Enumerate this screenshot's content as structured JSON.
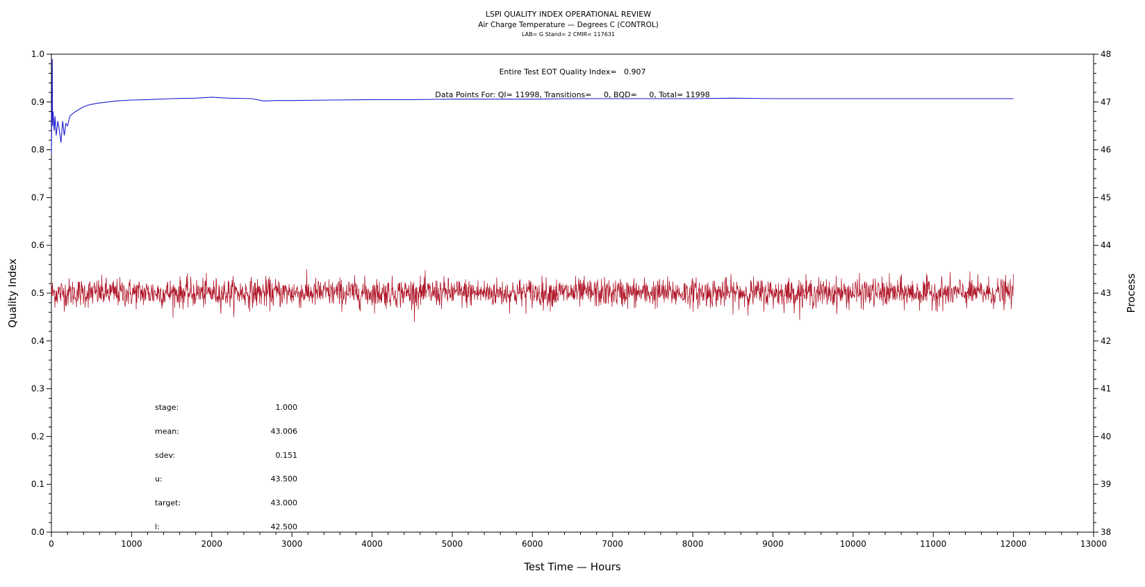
{
  "chart_data": {
    "type": "line",
    "title": "LSPI QUALITY INDEX OPERATIONAL REVIEW",
    "subtitle": "Air Charge Temperature — Degrees C (CONTROL)",
    "subtitle2": "LAB= G Stand= 2 CMIR= 117631",
    "xlabel": "Test Time — Hours",
    "ylabel": "Quality Index",
    "y2label": "Process",
    "xlim": [
      0,
      13000
    ],
    "ylim": [
      0.0,
      1.0
    ],
    "y2lim": [
      38,
      48
    ],
    "xticks": [
      "0",
      "1000",
      "2000",
      "3000",
      "4000",
      "5000",
      "6000",
      "7000",
      "8000",
      "9000",
      "10000",
      "11000",
      "12000",
      "13000"
    ],
    "yticks": [
      "0.0",
      "0.1",
      "0.2",
      "0.3",
      "0.4",
      "0.5",
      "0.6",
      "0.7",
      "0.8",
      "0.9",
      "1.0"
    ],
    "y2ticks": [
      "38",
      "39",
      "40",
      "41",
      "42",
      "43",
      "44",
      "45",
      "46",
      "47",
      "48"
    ],
    "grid": false,
    "annotations": {
      "eot": "Entire Test EOT Quality Index=   0.907",
      "points": "Data Points For: QI= 11998, Transitions=     0, BQD=     0, Total= 11998"
    },
    "stats": [
      {
        "label": "stage:",
        "value": "1.000"
      },
      {
        "label": "mean:",
        "value": "43.006"
      },
      {
        "label": "sdev:",
        "value": "0.151"
      },
      {
        "label": "u:",
        "value": "43.500"
      },
      {
        "label": "target:",
        "value": "43.000"
      },
      {
        "label": "l:",
        "value": "42.500"
      }
    ],
    "series": [
      {
        "axis": "left",
        "color": "#1a1acd",
        "x": [
          0,
          10,
          15,
          20,
          28,
          35,
          45,
          60,
          80,
          100,
          120,
          140,
          160,
          180,
          200,
          230,
          260,
          300,
          350,
          400,
          450,
          500,
          600,
          700,
          800,
          1000,
          1200,
          1500,
          1800,
          2000,
          2200,
          2500,
          2650,
          2800,
          3000,
          3500,
          4000,
          4500,
          5000,
          5500,
          6000,
          6500,
          7000,
          7500,
          8000,
          8500,
          9000,
          9500,
          10000,
          10500,
          11000,
          11500,
          12000
        ],
        "values": [
          0.79,
          0.99,
          0.85,
          0.88,
          0.86,
          0.84,
          0.87,
          0.83,
          0.86,
          0.84,
          0.815,
          0.86,
          0.83,
          0.855,
          0.85,
          0.87,
          0.875,
          0.88,
          0.885,
          0.89,
          0.893,
          0.895,
          0.898,
          0.9,
          0.902,
          0.904,
          0.905,
          0.907,
          0.908,
          0.91,
          0.908,
          0.907,
          0.902,
          0.903,
          0.903,
          0.904,
          0.905,
          0.905,
          0.906,
          0.906,
          0.906,
          0.907,
          0.907,
          0.907,
          0.907,
          0.908,
          0.907,
          0.907,
          0.907,
          0.907,
          0.907,
          0.907,
          0.907
        ]
      },
      {
        "axis": "right",
        "color": "#b0182a",
        "x_start": 0,
        "x_end": 12000,
        "center": 43.006,
        "sdev": 0.151,
        "count": 11998
      }
    ]
  }
}
